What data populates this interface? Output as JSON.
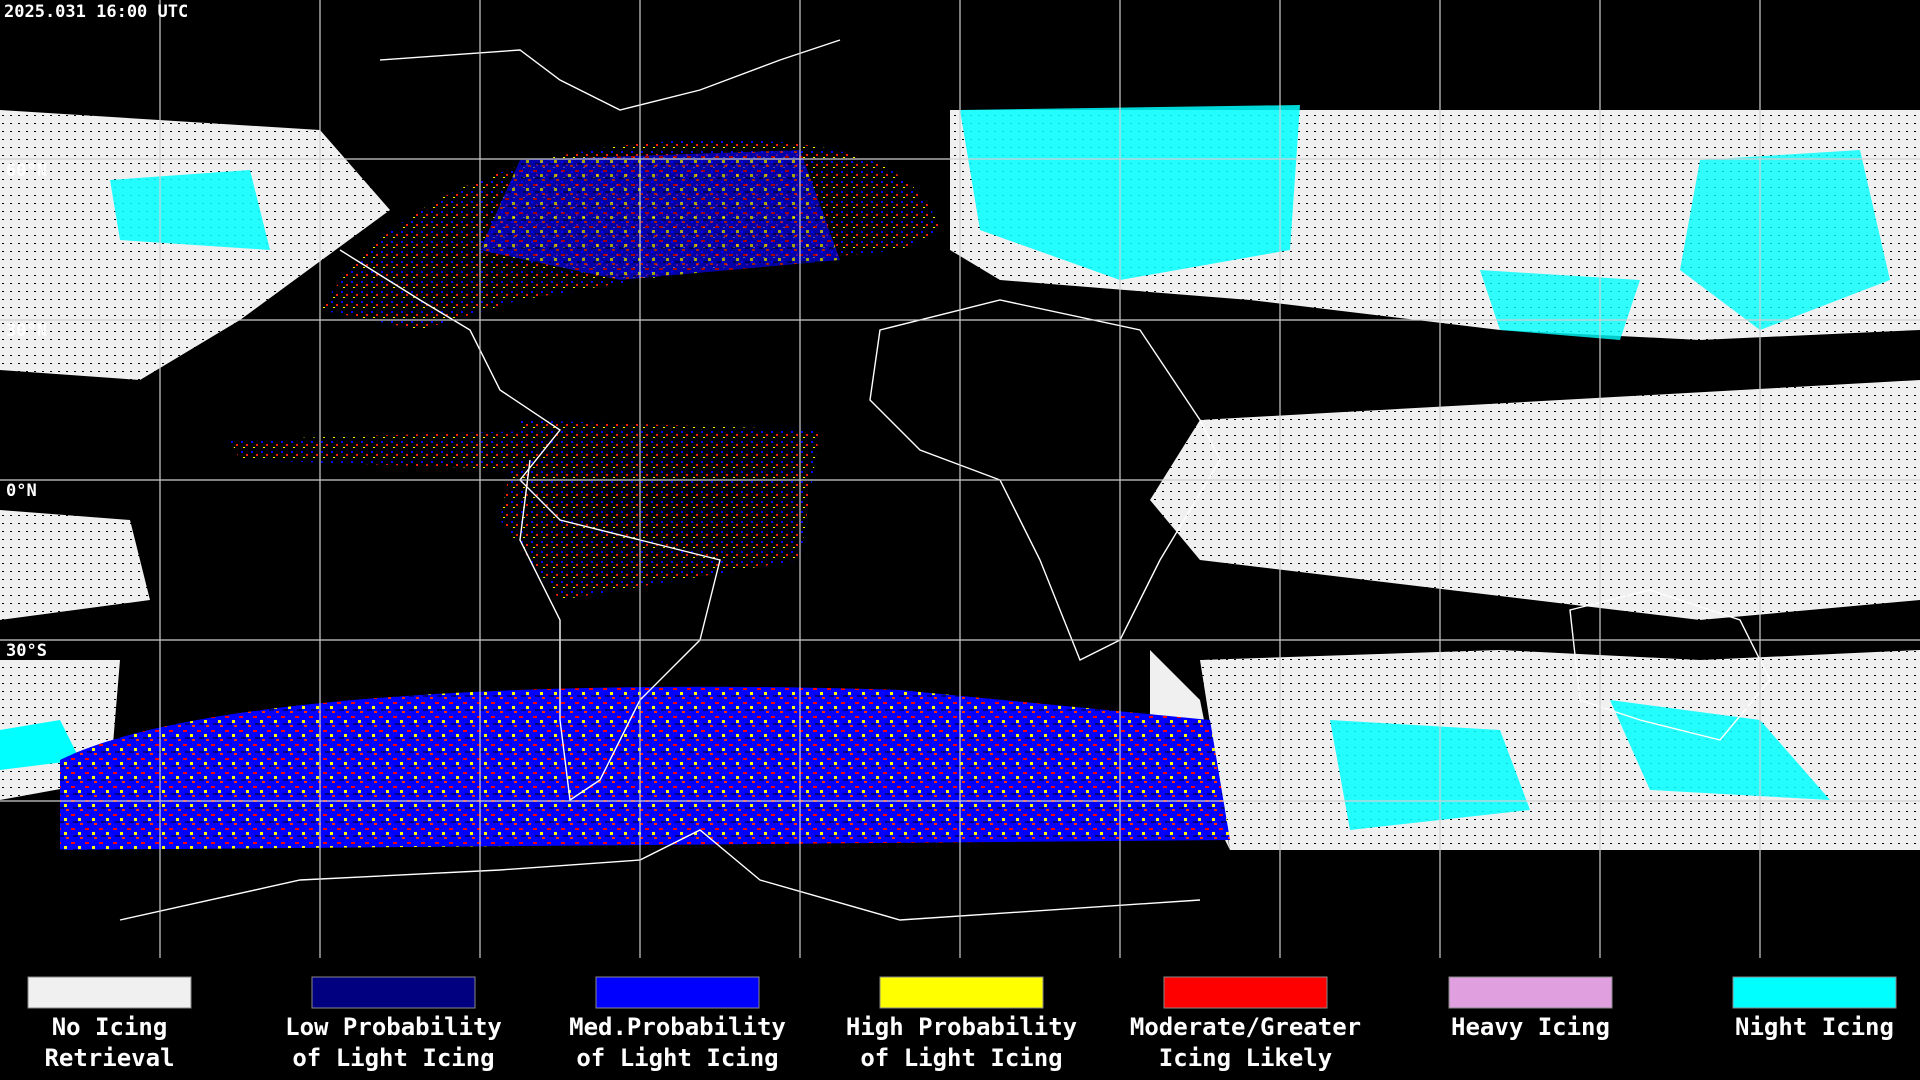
{
  "header": {
    "timestamp": "2025.031 16:00 UTC"
  },
  "map": {
    "latitude_labels": [
      "60°N",
      "30°N",
      "0°N",
      "30°S"
    ]
  },
  "legend": {
    "items": [
      {
        "lines": [
          "No Icing",
          "Retrieval"
        ],
        "color": "#f0f0f0"
      },
      {
        "lines": [
          "Low Probability",
          "of Light Icing"
        ],
        "color": "#000080"
      },
      {
        "lines": [
          "Med.Probability",
          "of Light Icing"
        ],
        "color": "#0000ff"
      },
      {
        "lines": [
          "High Probability",
          "of Light Icing"
        ],
        "color": "#ffff00"
      },
      {
        "lines": [
          "Moderate/Greater",
          "Icing Likely"
        ],
        "color": "#ff0000"
      },
      {
        "lines": [
          "Heavy Icing"
        ],
        "color": "#e0a0e0"
      },
      {
        "lines": [
          "Night Icing"
        ],
        "color": "#00ffff"
      }
    ]
  }
}
